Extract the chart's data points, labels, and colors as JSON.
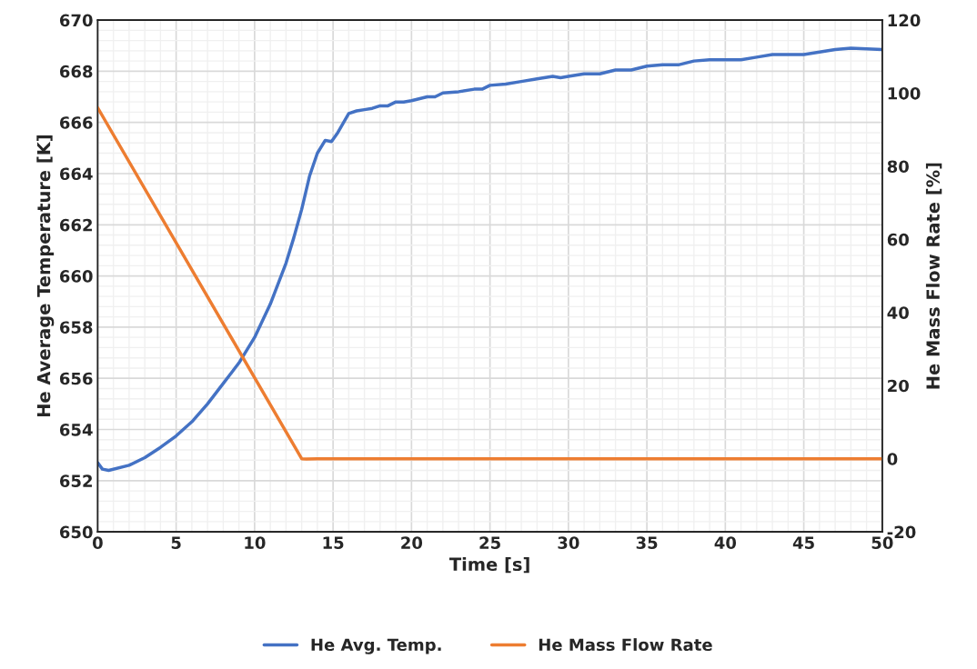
{
  "chart_data": {
    "type": "line",
    "xlabel": "Time [s]",
    "ylabel": "He Average Temperature [K]",
    "y2label": "He Mass Flow Rate [%]",
    "xlim": [
      0,
      50
    ],
    "xticks": [
      0,
      5,
      10,
      15,
      20,
      25,
      30,
      35,
      40,
      45,
      50
    ],
    "ylim": [
      650,
      670
    ],
    "yticks": [
      650,
      652,
      654,
      656,
      658,
      660,
      662,
      664,
      666,
      668,
      670
    ],
    "y2lim": [
      -20,
      120
    ],
    "y2ticks": [
      -20,
      0,
      20,
      40,
      60,
      80,
      100,
      120
    ],
    "grid": true,
    "legend": "bottom",
    "marker": "none",
    "line_style": "solid",
    "series": [
      {
        "name": "He Avg. Temp.",
        "color": "#4472c4",
        "x": [
          0,
          0.3,
          0.7,
          2,
          3,
          4,
          5,
          6,
          7,
          8,
          9,
          10,
          11,
          12,
          12.5,
          13,
          13.5,
          14,
          14.5,
          14.9,
          15.3,
          16,
          16.5,
          17,
          17.5,
          18,
          18.5,
          19,
          19.5,
          20,
          21,
          21.5,
          22,
          23,
          24,
          24.5,
          25,
          26,
          27,
          28,
          29,
          29.5,
          30,
          31,
          32,
          33,
          34,
          35,
          36,
          37,
          38,
          39,
          40,
          41,
          42,
          43,
          44,
          45,
          46,
          47,
          48,
          50
        ],
        "values": [
          652.7,
          652.45,
          652.4,
          652.6,
          652.9,
          653.3,
          653.75,
          654.3,
          655.0,
          655.8,
          656.6,
          657.6,
          658.9,
          660.5,
          661.5,
          662.6,
          663.9,
          664.8,
          665.3,
          665.25,
          665.6,
          666.35,
          666.45,
          666.5,
          666.55,
          666.65,
          666.65,
          666.8,
          666.8,
          666.85,
          667.0,
          667.0,
          667.15,
          667.2,
          667.3,
          667.3,
          667.45,
          667.5,
          667.6,
          667.7,
          667.8,
          667.75,
          667.8,
          667.9,
          667.9,
          668.05,
          668.05,
          668.2,
          668.25,
          668.25,
          668.4,
          668.45,
          668.45,
          668.45,
          668.55,
          668.65,
          668.65,
          668.65,
          668.75,
          668.85,
          668.9,
          668.85
        ]
      },
      {
        "name": "He Mass Flow Rate",
        "color": "#ed7d31",
        "axis": "y2",
        "x": [
          0,
          13,
          13.3,
          14,
          50
        ],
        "values": [
          96,
          0,
          -0.1,
          0,
          0
        ]
      }
    ]
  }
}
